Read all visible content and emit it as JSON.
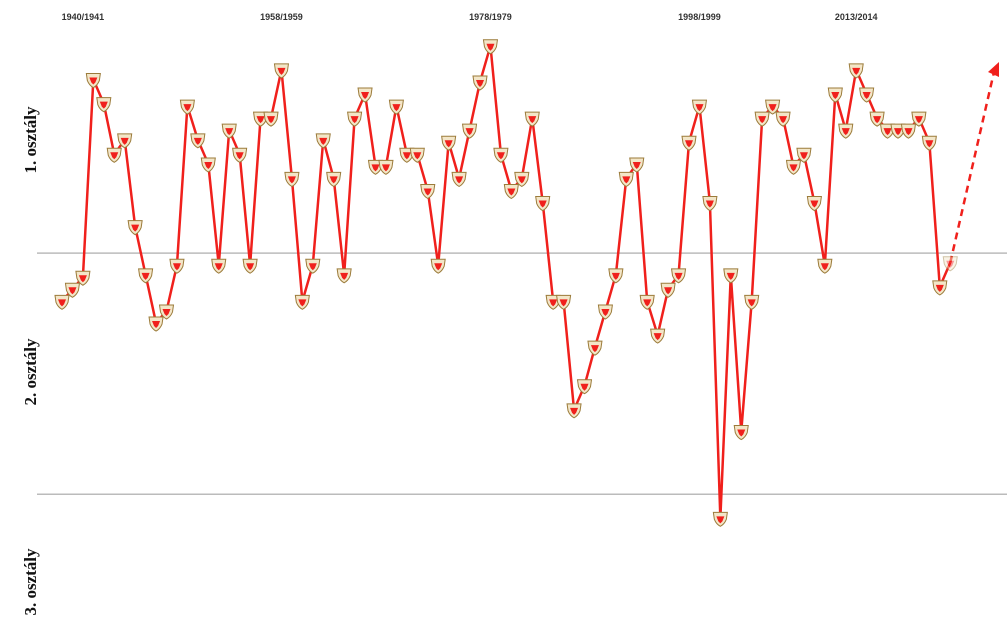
{
  "chart_data": {
    "type": "line",
    "categories": [
      null,
      null,
      "1940/1941",
      null,
      null,
      null,
      null,
      null,
      null,
      null,
      null,
      null,
      null,
      null,
      null,
      null,
      null,
      null,
      null,
      null,
      null,
      "1958/1959",
      null,
      null,
      null,
      null,
      null,
      null,
      null,
      null,
      null,
      null,
      null,
      null,
      null,
      null,
      null,
      null,
      null,
      null,
      null,
      "1978/1979",
      null,
      null,
      null,
      null,
      null,
      null,
      null,
      null,
      null,
      null,
      null,
      null,
      null,
      null,
      null,
      null,
      null,
      null,
      null,
      "1998/1999",
      null,
      null,
      null,
      null,
      null,
      null,
      null,
      null,
      null,
      null,
      null,
      null,
      null,
      null,
      "2013/2014",
      null,
      null,
      null,
      null,
      null,
      null,
      null,
      null,
      null
    ],
    "values": [
      -0.2,
      -0.15,
      -0.1,
      0.72,
      0.62,
      0.41,
      0.47,
      0.11,
      -0.09,
      -0.29,
      -0.24,
      -0.05,
      0.61,
      0.47,
      0.37,
      -0.05,
      0.51,
      0.41,
      -0.05,
      0.56,
      0.56,
      0.76,
      0.31,
      -0.2,
      -0.05,
      0.47,
      0.31,
      -0.09,
      0.56,
      0.66,
      0.36,
      0.36,
      0.61,
      0.41,
      0.41,
      0.26,
      -0.05,
      0.46,
      0.31,
      0.51,
      0.71,
      0.86,
      0.41,
      0.26,
      0.31,
      0.56,
      0.21,
      -0.2,
      -0.2,
      -0.65,
      -0.55,
      -0.39,
      -0.24,
      -0.09,
      0.31,
      0.37,
      -0.2,
      -0.34,
      -0.15,
      -0.09,
      0.46,
      0.61,
      0.21,
      -1.1,
      -0.09,
      -0.74,
      -0.2,
      0.56,
      0.61,
      0.56,
      0.36,
      0.41,
      0.21,
      -0.05,
      0.66,
      0.51,
      0.76,
      0.66,
      0.56,
      0.51,
      0.51,
      0.51,
      0.56,
      0.46,
      -0.14,
      -0.04
    ],
    "color": "#f0201c",
    "ylim": [
      -1.53,
      1.05
    ],
    "division_lines": [
      0,
      -1
    ],
    "divisions": [
      "1. osztály",
      "2. osztály",
      "3. osztály"
    ]
  }
}
